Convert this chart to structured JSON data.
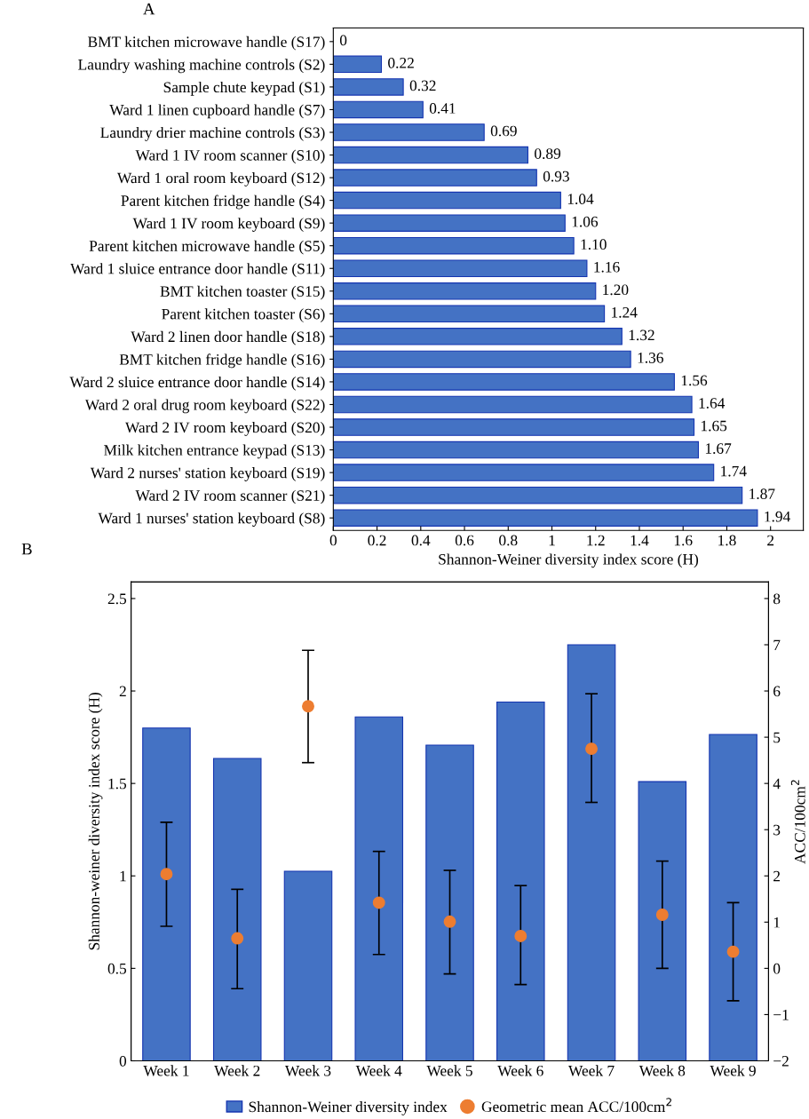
{
  "chart_data": [
    {
      "type": "bar",
      "title": "A",
      "orientation": "horizontal",
      "xlabel": "Shannon-Weiner diversity index score (H)",
      "categories": [
        "BMT kitchen microwave handle (S17)",
        "Laundry washing machine controls (S2)",
        "Sample chute keypad (S1)",
        "Ward 1 linen cupboard handle (S7)",
        "Laundry drier machine controls (S3)",
        "Ward 1 IV room scanner (S10)",
        "Ward 1 oral room keyboard (S12)",
        "Parent kitchen fridge handle (S4)",
        "Ward 1 IV room keyboard (S9)",
        "Parent kitchen microwave handle (S5)",
        "Ward 1 sluice entrance door handle (S11)",
        "BMT kitchen toaster (S15)",
        "Parent kitchen toaster (S6)",
        "Ward 2 linen door handle (S18)",
        "BMT kitchen fridge handle (S16)",
        "Ward 2 sluice entrance door handle (S14)",
        "Ward 2 oral drug room keyboard (S22)",
        "Ward 2 IV room keyboard (S20)",
        "Milk kitchen entrance keypad (S13)",
        "Ward 2 nurses' station keyboard (S19)",
        "Ward 2 IV room scanner (S21)",
        "Ward 1 nurses' station keyboard (S8)"
      ],
      "values": [
        0,
        0.22,
        0.32,
        0.41,
        0.69,
        0.89,
        0.93,
        1.04,
        1.06,
        1.1,
        1.16,
        1.2,
        1.24,
        1.32,
        1.36,
        1.56,
        1.64,
        1.65,
        1.67,
        1.74,
        1.87,
        1.94
      ],
      "value_labels": [
        "0",
        "0.22",
        "0.32",
        "0.41",
        "0.69",
        "0.89",
        "0.93",
        "1.04",
        "1.06",
        "1.10",
        "1.16",
        "1.20",
        "1.24",
        "1.32",
        "1.36",
        "1.56",
        "1.64",
        "1.65",
        "1.67",
        "1.74",
        "1.87",
        "1.94"
      ],
      "color": "#4472c4",
      "xlim": [
        0,
        2.15
      ],
      "xticks": [
        0,
        0.2,
        0.4,
        0.6,
        0.8,
        1,
        1.2,
        1.4,
        1.6,
        1.8,
        2
      ]
    },
    {
      "type": "bar",
      "title": "B",
      "ylabel": "Shannon-weiner diversity index score (H)",
      "y2label": "ACC/100cm$^{2}$",
      "categories": [
        "Week 1",
        "Week 2",
        "Week 3",
        "Week 4",
        "Week 5",
        "Week 6",
        "Week 7",
        "Week 8",
        "Week 9"
      ],
      "series": [
        {
          "name": "Shannon-Weiner diversity index",
          "type": "bar",
          "color": "#4472c4",
          "values": [
            1.8,
            1.635,
            1.025,
            1.86,
            1.707,
            1.94,
            2.25,
            1.51,
            1.765
          ]
        },
        {
          "name": "Geometric mean ACC/100cm$^{2}$",
          "type": "scatter",
          "axis": "y2",
          "color": "#ed7d31",
          "marker": "circle",
          "values": [
            2.04,
            0.65,
            5.67,
            1.42,
            1.01,
            0.7,
            4.75,
            1.16,
            0.36
          ],
          "errors": [
            [
              0.91,
              3.16
            ],
            [
              -0.44,
              1.71
            ],
            [
              4.45,
              6.88
            ],
            [
              0.3,
              2.53
            ],
            [
              -0.12,
              2.12
            ],
            [
              -0.35,
              1.79
            ],
            [
              3.59,
              5.94
            ],
            [
              0.0,
              2.32
            ],
            [
              -0.7,
              1.42
            ]
          ]
        }
      ],
      "ylim": [
        0,
        2.59
      ],
      "yticks": [
        0,
        0.5,
        1,
        1.5,
        2,
        2.5
      ],
      "y2lim": [
        -2,
        8.36
      ],
      "y2ticks": [
        {
          "value": -2,
          "label": "−2"
        },
        {
          "value": -1,
          "label": "−1"
        },
        0,
        1,
        2,
        3,
        4,
        5,
        6,
        7,
        8
      ],
      "grid": false,
      "legend": "bottom"
    }
  ]
}
